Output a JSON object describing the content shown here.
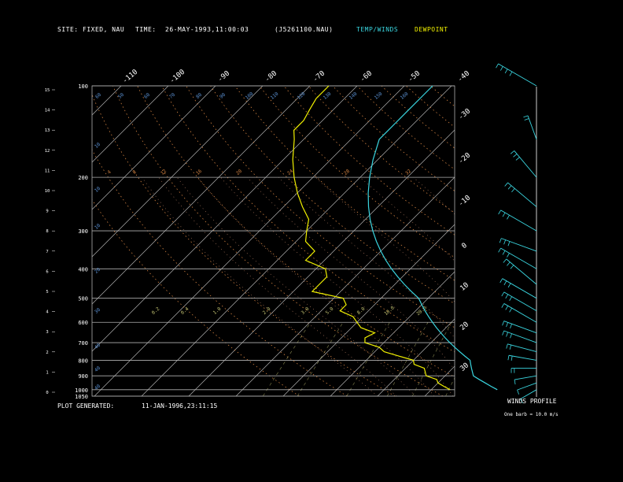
{
  "header": {
    "site_label": "SITE:",
    "site_value": "FIXED, NAU",
    "time_label": "TIME:",
    "time_value": "26-MAY-1993,11:00:03",
    "station_id": "(J5261100.NAU)",
    "legend_temp": "TEMP/WINDS",
    "legend_dew": "DEWPOINT"
  },
  "footer": {
    "generated_label": "PLOT GENERATED:",
    "generated_value": "11-JAN-1996,23:11:15",
    "wind_title": "WINDS PROFILE",
    "wind_scale": "One barb = 10.0 m/s"
  },
  "colors": {
    "temp": "#3ad6e0",
    "dew": "#f0f000",
    "grid": "#b0b0b0",
    "dry_adiabat": "#d08040",
    "moist_adiabat": "#d09070",
    "mixing_ratio": "#c0c070",
    "theta_label": "#5a8fd0",
    "wind": "#3ad6e0"
  },
  "chart_data": {
    "type": "line",
    "diagram": "skew-T log-P",
    "pressure_ticks": [
      "100",
      "200",
      "300",
      "400",
      "500",
      "600",
      "700",
      "800",
      "900",
      "1000",
      "1050"
    ],
    "pressure_levels": [
      100,
      200,
      300,
      400,
      500,
      600,
      700,
      800,
      900,
      1000,
      1050
    ],
    "height_ticks": [
      "15",
      "14",
      "13",
      "12",
      "11",
      "10",
      "9",
      "8",
      "7",
      "6",
      "5",
      "4",
      "3",
      "2",
      "1",
      "0"
    ],
    "temp_top_ticks": [
      "-110",
      "-100",
      "-90",
      "-80",
      "-70",
      "-60",
      "-50",
      "-40"
    ],
    "temp_right_ticks": [
      "-30",
      "-20",
      "-10",
      "0",
      "10",
      "20",
      "30"
    ],
    "theta_labels": [
      "60",
      "50",
      "60",
      "70",
      "80",
      "90",
      "100",
      "110",
      "120",
      "130",
      "140",
      "150",
      "160"
    ],
    "theta_low_labels": [
      "10",
      "10",
      "10",
      "20",
      "30",
      "40",
      "40",
      "40"
    ],
    "dry_labels": [
      "4",
      "8",
      "12",
      "16",
      "20",
      "24",
      "28",
      "32"
    ],
    "mix_labels": [
      "0.2",
      "0.4",
      "1.0",
      "2.0",
      "3.0",
      "5.0",
      "8.0",
      "10.0",
      "20.0"
    ],
    "ylim": [
      1050,
      100
    ],
    "series": [
      {
        "name": "TEMP/WINDS",
        "points": [
          [
            1000,
            14
          ],
          [
            975,
            12
          ],
          [
            950,
            10
          ],
          [
            925,
            8
          ],
          [
            900,
            6
          ],
          [
            875,
            5
          ],
          [
            850,
            4
          ],
          [
            825,
            3
          ],
          [
            800,
            2
          ],
          [
            775,
            0
          ],
          [
            750,
            -2
          ],
          [
            725,
            -4
          ],
          [
            700,
            -6
          ],
          [
            675,
            -8
          ],
          [
            650,
            -10
          ],
          [
            625,
            -12
          ],
          [
            600,
            -14
          ],
          [
            575,
            -16
          ],
          [
            550,
            -18
          ],
          [
            525,
            -20
          ],
          [
            500,
            -22
          ],
          [
            475,
            -25
          ],
          [
            450,
            -28
          ],
          [
            425,
            -31
          ],
          [
            400,
            -34
          ],
          [
            375,
            -37
          ],
          [
            350,
            -40
          ],
          [
            325,
            -43
          ],
          [
            300,
            -46
          ],
          [
            275,
            -49
          ],
          [
            250,
            -52
          ],
          [
            225,
            -55
          ],
          [
            200,
            -58
          ],
          [
            175,
            -61
          ],
          [
            150,
            -64
          ],
          [
            140,
            -64
          ],
          [
            130,
            -64
          ],
          [
            120,
            -64
          ],
          [
            110,
            -64
          ],
          [
            100,
            -64
          ]
        ]
      },
      {
        "name": "DEWPOINT",
        "points": [
          [
            1000,
            4
          ],
          [
            975,
            2
          ],
          [
            950,
            0
          ],
          [
            925,
            -1
          ],
          [
            900,
            -4
          ],
          [
            875,
            -5
          ],
          [
            850,
            -6
          ],
          [
            825,
            -9
          ],
          [
            800,
            -10
          ],
          [
            775,
            -14
          ],
          [
            750,
            -18
          ],
          [
            725,
            -20
          ],
          [
            700,
            -24
          ],
          [
            675,
            -25
          ],
          [
            650,
            -24
          ],
          [
            625,
            -28
          ],
          [
            600,
            -30
          ],
          [
            575,
            -32
          ],
          [
            550,
            -36
          ],
          [
            525,
            -36
          ],
          [
            500,
            -38
          ],
          [
            475,
            -46
          ],
          [
            450,
            -46
          ],
          [
            425,
            -46
          ],
          [
            400,
            -48
          ],
          [
            375,
            -54
          ],
          [
            350,
            -54
          ],
          [
            325,
            -58
          ],
          [
            300,
            -60
          ],
          [
            275,
            -62
          ],
          [
            250,
            -66
          ],
          [
            225,
            -70
          ],
          [
            200,
            -74
          ],
          [
            175,
            -78
          ],
          [
            150,
            -82
          ],
          [
            140,
            -84
          ],
          [
            130,
            -84
          ],
          [
            120,
            -85
          ],
          [
            110,
            -86
          ],
          [
            100,
            -86
          ]
        ]
      }
    ],
    "wind_profile": [
      {
        "p": 1000,
        "dir": 240,
        "spd": 8
      },
      {
        "p": 950,
        "dir": 250,
        "spd": 10
      },
      {
        "p": 900,
        "dir": 260,
        "spd": 12
      },
      {
        "p": 850,
        "dir": 270,
        "spd": 15
      },
      {
        "p": 800,
        "dir": 280,
        "spd": 18
      },
      {
        "p": 750,
        "dir": 285,
        "spd": 20
      },
      {
        "p": 700,
        "dir": 290,
        "spd": 25
      },
      {
        "p": 650,
        "dir": 290,
        "spd": 25
      },
      {
        "p": 600,
        "dir": 300,
        "spd": 28
      },
      {
        "p": 550,
        "dir": 300,
        "spd": 28
      },
      {
        "p": 500,
        "dir": 300,
        "spd": 30
      },
      {
        "p": 450,
        "dir": 310,
        "spd": 30
      },
      {
        "p": 400,
        "dir": 300,
        "spd": 32
      },
      {
        "p": 350,
        "dir": 290,
        "spd": 28
      },
      {
        "p": 300,
        "dir": 300,
        "spd": 32
      },
      {
        "p": 250,
        "dir": 310,
        "spd": 28
      },
      {
        "p": 200,
        "dir": 320,
        "spd": 25
      },
      {
        "p": 150,
        "dir": 340,
        "spd": 15
      },
      {
        "p": 100,
        "dir": 300,
        "spd": 35
      }
    ]
  }
}
